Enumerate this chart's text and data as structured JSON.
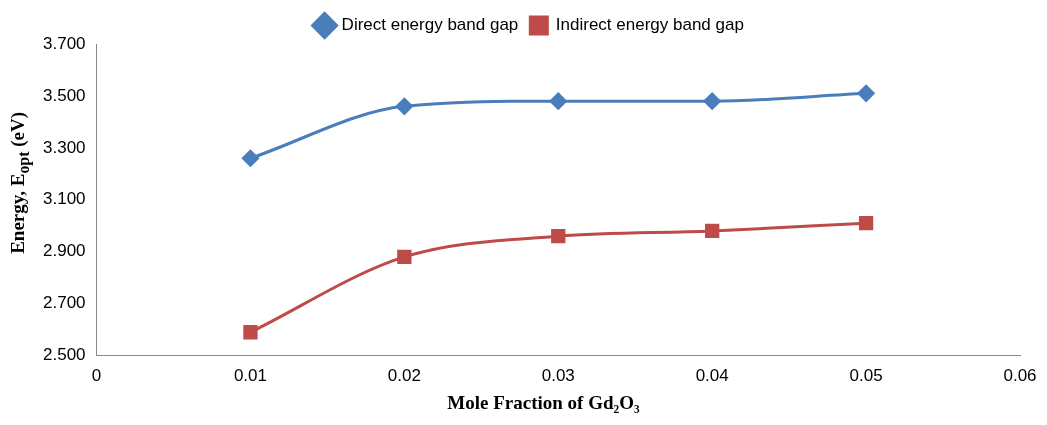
{
  "chart_data": {
    "type": "line",
    "xlabel": "Mole Fraction of Gd₂O₃",
    "ylabel": "Energy, E$_{opt}$ (eV)",
    "x": [
      0.01,
      0.02,
      0.03,
      0.04,
      0.05
    ],
    "series": [
      {
        "name": "Direct energy band gap",
        "color": "#4a7ebb",
        "marker": "diamond",
        "values": [
          3.26,
          3.46,
          3.48,
          3.48,
          3.51
        ]
      },
      {
        "name": "Indirect energy band gap",
        "color": "#be4b48",
        "marker": "square",
        "values": [
          2.59,
          2.88,
          2.96,
          2.98,
          3.01
        ]
      }
    ],
    "xlim": [
      0,
      0.06
    ],
    "xticks": [
      0,
      0.01,
      0.02,
      0.03,
      0.04,
      0.05,
      0.06
    ],
    "ylim": [
      2.5,
      3.7
    ],
    "yticks": [
      {
        "value": 2.5,
        "label": "2.500"
      },
      {
        "value": 2.7,
        "label": "2.700"
      },
      {
        "value": 2.9,
        "label": "2.900"
      },
      {
        "value": 3.1,
        "label": "3.100"
      },
      {
        "value": 3.3,
        "label": "3.300"
      },
      {
        "value": 3.5,
        "label": "3.500"
      },
      {
        "value": 3.7,
        "label": "3.700"
      }
    ],
    "grid": false,
    "legend": "top",
    "line_style": "solid"
  }
}
